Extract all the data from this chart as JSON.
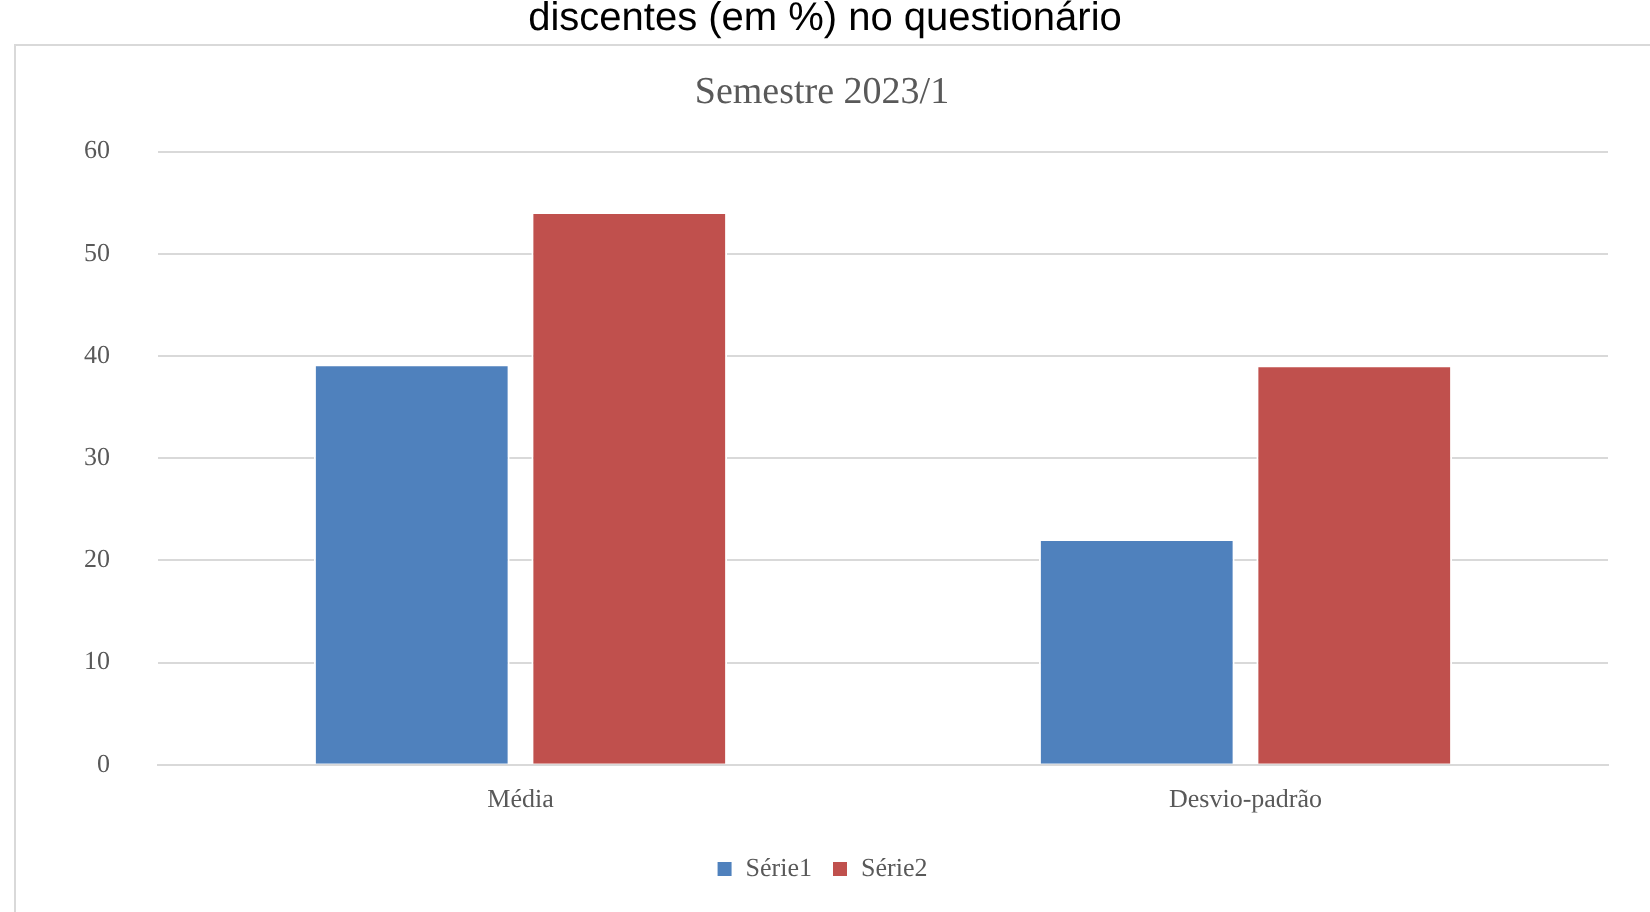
{
  "chart_data": {
    "type": "bar",
    "title": "Semestre 2023/1",
    "annotations": [
      "discentes (em %) no questionário"
    ],
    "categories": [
      "Média",
      "Desvio-padrão"
    ],
    "series": [
      {
        "name": "Série1",
        "color": "#4f81bd",
        "values": [
          39.2,
          22.1
        ]
      },
      {
        "name": "Série2",
        "color": "#c0504d",
        "values": [
          54.1,
          39.1
        ]
      }
    ],
    "ylim": [
      0,
      60
    ],
    "yticks": [
      0,
      10,
      20,
      30,
      40,
      50,
      60
    ],
    "grid": "y",
    "legend": "bottom"
  }
}
